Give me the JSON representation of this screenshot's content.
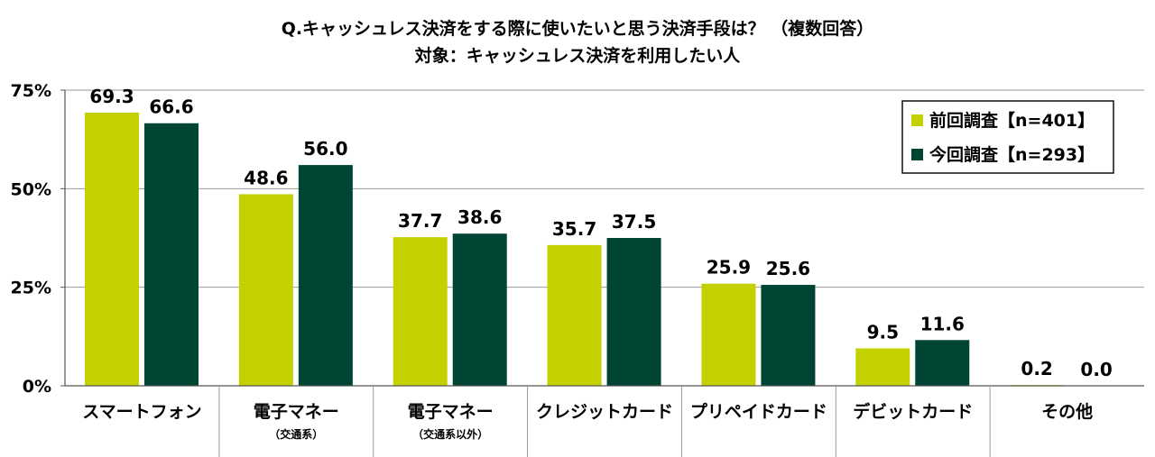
{
  "chart_data": {
    "type": "bar",
    "title_line1": "Q.キャッシュレス決済をする際に使いたいと思う決済手段は？ （複数回答）",
    "title_line2": "対象：キャッシュレス決済を利用したい人",
    "categories": [
      {
        "label": "スマートフォン",
        "sub": ""
      },
      {
        "label": "電子マネー",
        "sub": "（交通系）"
      },
      {
        "label": "電子マネー",
        "sub": "（交通系以外）"
      },
      {
        "label": "クレジットカード",
        "sub": ""
      },
      {
        "label": "プリペイドカード",
        "sub": ""
      },
      {
        "label": "デビットカード",
        "sub": ""
      },
      {
        "label": "その他",
        "sub": ""
      }
    ],
    "series": [
      {
        "name": "前回調査【n=401】",
        "color": "#c3d100",
        "values": [
          69.3,
          48.6,
          37.7,
          35.7,
          25.9,
          9.5,
          0.2
        ]
      },
      {
        "name": "今回調査【n=293】",
        "color": "#004433",
        "values": [
          66.6,
          56.0,
          38.6,
          37.5,
          25.6,
          11.6,
          0.0
        ]
      }
    ],
    "y_ticks": [
      0,
      25,
      50,
      75
    ],
    "y_tick_labels": [
      "0%",
      "25%",
      "50%",
      "75%"
    ],
    "ylim": [
      0,
      75
    ],
    "legend_position": "top-right"
  }
}
